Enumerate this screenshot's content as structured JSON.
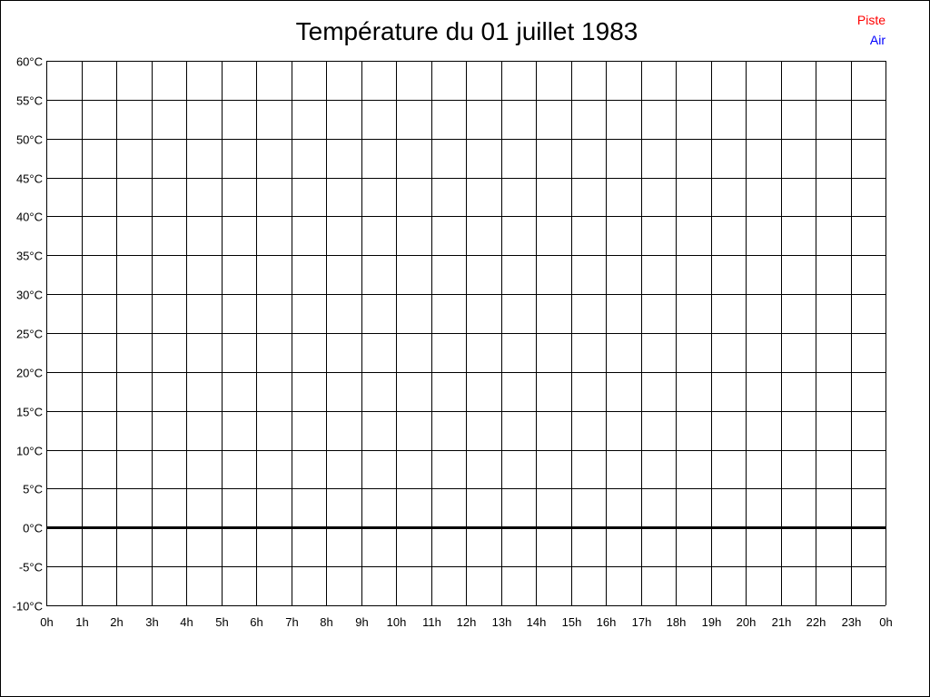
{
  "chart_data": {
    "type": "line",
    "title": "Température du 01 juillet 1983",
    "xlabel": "",
    "ylabel": "",
    "x_ticks": [
      "0h",
      "1h",
      "2h",
      "3h",
      "4h",
      "5h",
      "6h",
      "7h",
      "8h",
      "9h",
      "10h",
      "11h",
      "12h",
      "13h",
      "14h",
      "15h",
      "16h",
      "17h",
      "18h",
      "19h",
      "20h",
      "21h",
      "22h",
      "23h",
      "0h"
    ],
    "y_ticks": [
      60,
      55,
      50,
      45,
      40,
      35,
      30,
      25,
      20,
      15,
      10,
      5,
      0,
      -5,
      -10
    ],
    "y_unit": "°C",
    "ylim": [
      -10,
      60
    ],
    "xlim": [
      0,
      24
    ],
    "grid": true,
    "legend_position": "top-right",
    "series": [
      {
        "name": "Piste",
        "color": "#ff0000",
        "values": []
      },
      {
        "name": "Air",
        "color": "#0000ff",
        "values": []
      }
    ]
  }
}
